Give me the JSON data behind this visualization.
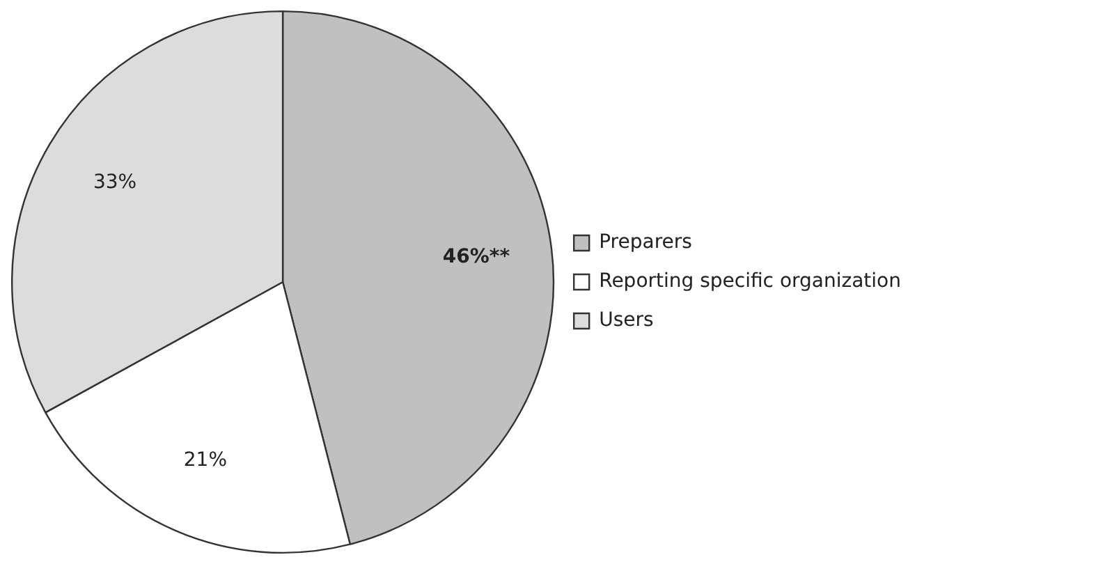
{
  "chart_data": {
    "type": "pie",
    "categories": [
      "Preparers",
      "Reporting specific organization",
      "Users"
    ],
    "values": [
      46,
      21,
      33
    ],
    "value_labels": [
      "46%**",
      "21%",
      "33%"
    ],
    "colors": [
      "#c0c0c0",
      "#ffffff",
      "#dcdcdc"
    ],
    "legend": "right"
  }
}
